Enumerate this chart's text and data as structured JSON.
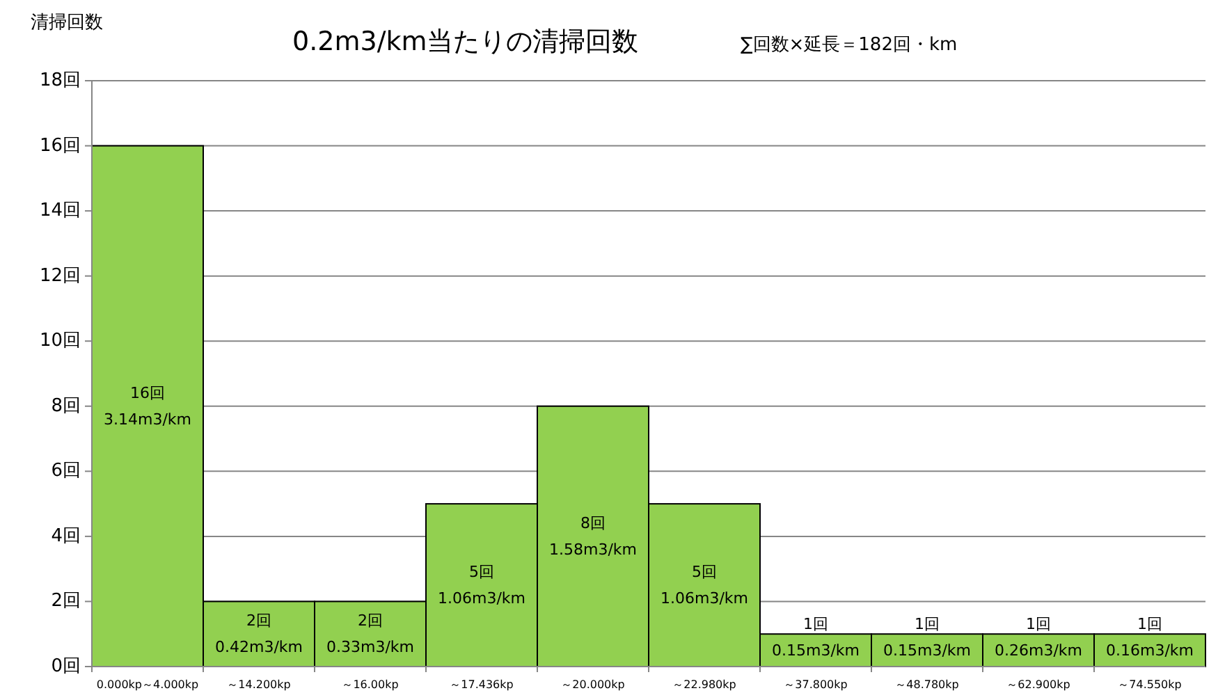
{
  "chart_data": {
    "type": "bar",
    "title": "0.2m3/km当たりの清掃回数",
    "subtitle": "∑回数×延長＝182回・km",
    "ylabel": "清掃回数",
    "categories": [
      "0.000kp～4.000kp",
      "～14.200kp",
      "～16.00kp",
      "～17.436kp",
      "～20.000kp",
      "～22.980kp",
      "～37.800kp",
      "～48.780kp",
      "～62.900kp",
      "～74.550kp"
    ],
    "values": [
      16,
      2,
      2,
      5,
      8,
      5,
      1,
      1,
      1,
      1
    ],
    "value_labels": [
      "16回\n3.14m3/km",
      "2回\n0.42m3/km",
      "2回\n0.33m3/km",
      "5回\n1.06m3/km",
      "8回\n1.58m3/km",
      "5回\n1.06m3/km",
      "1回\n0.15m3/km",
      "1回\n0.15m3/km",
      "1回\n0.26m3/km",
      "1回\n0.16m3/km"
    ],
    "color": "#92d050",
    "ylim": [
      0,
      18
    ],
    "yticks": [
      {
        "value": 0,
        "label": "0回"
      },
      {
        "value": 2,
        "label": "2回"
      },
      {
        "value": 4,
        "label": "4回"
      },
      {
        "value": 6,
        "label": "6回"
      },
      {
        "value": 8,
        "label": "8回"
      },
      {
        "value": 10,
        "label": "10回"
      },
      {
        "value": 12,
        "label": "12回"
      },
      {
        "value": 14,
        "label": "14回"
      },
      {
        "value": 16,
        "label": "16回"
      },
      {
        "value": 18,
        "label": "18回"
      }
    ],
    "grid": "y"
  }
}
